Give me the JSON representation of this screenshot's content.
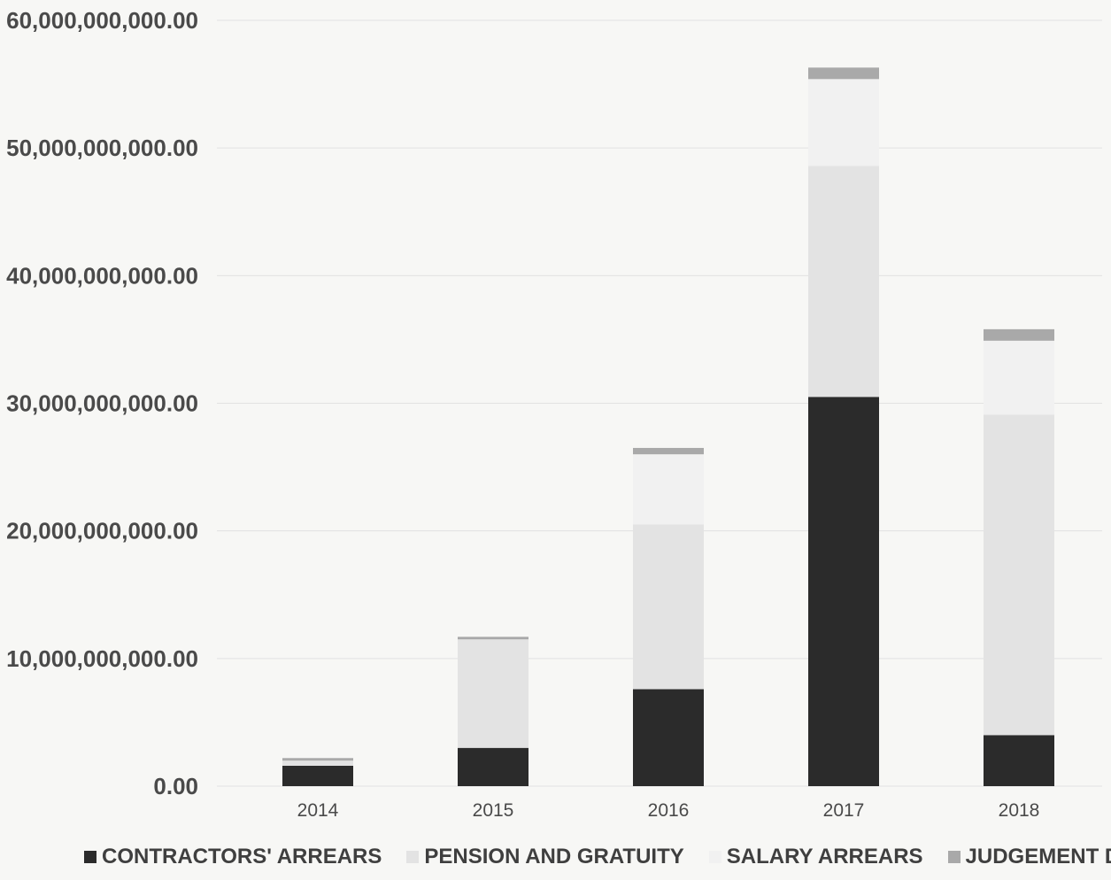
{
  "chart_data": {
    "type": "bar",
    "stacked": true,
    "categories": [
      "2014",
      "2015",
      "2016",
      "2017",
      "2018"
    ],
    "series": [
      {
        "name": "CONTRACTORS' ARREARS",
        "color": "#2b2b2b",
        "values": [
          1600000000,
          3000000000,
          7600000000,
          30500000000,
          4000000000
        ]
      },
      {
        "name": "PENSION AND GRATUITY",
        "color": "#e3e3e3",
        "values": [
          400000000,
          8500000000,
          12900000000,
          18100000000,
          25100000000
        ]
      },
      {
        "name": "SALARY ARREARS",
        "color": "#f1f1f1",
        "values": [
          0,
          0,
          5500000000,
          6800000000,
          5800000000
        ]
      },
      {
        "name": "JUDGEMENT DEBT",
        "color": "#a9a9a9",
        "values": [
          200000000,
          200000000,
          500000000,
          900000000,
          900000000
        ]
      }
    ],
    "y_ticks": [
      "0.00",
      "10,000,000,000.00",
      "20,000,000,000.00",
      "30,000,000,000.00",
      "40,000,000,000.00",
      "50,000,000,000.00",
      "60,000,000,000.00"
    ],
    "ylim": [
      0,
      60000000000
    ],
    "grid": true,
    "legend_position": "bottom",
    "title": "",
    "xlabel": "",
    "ylabel": ""
  }
}
